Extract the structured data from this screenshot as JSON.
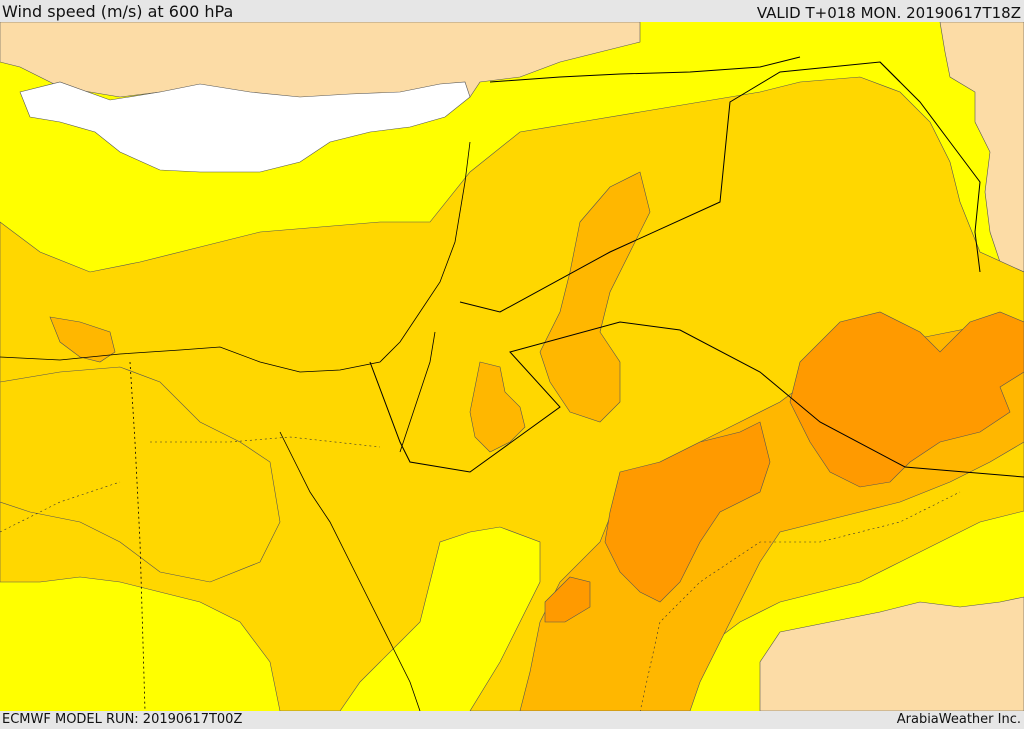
{
  "header": {
    "title": "Wind speed (m/s) at 600 hPa",
    "valid_time": "VALID T+018 MON. 20190617T18Z"
  },
  "footer": {
    "model_run": "ECMWF MODEL RUN: 20190617T00Z",
    "credit": "ArabiaWeather Inc."
  },
  "colors": {
    "land_below_threshold": "#fcdca6",
    "sea_below_threshold": "#ffffff",
    "band_1": "#ffff00",
    "band_2": "#ffd700",
    "band_3": "#ffb700",
    "band_4": "#ff9a00",
    "coastline": "#000000",
    "border": "#000000"
  }
}
